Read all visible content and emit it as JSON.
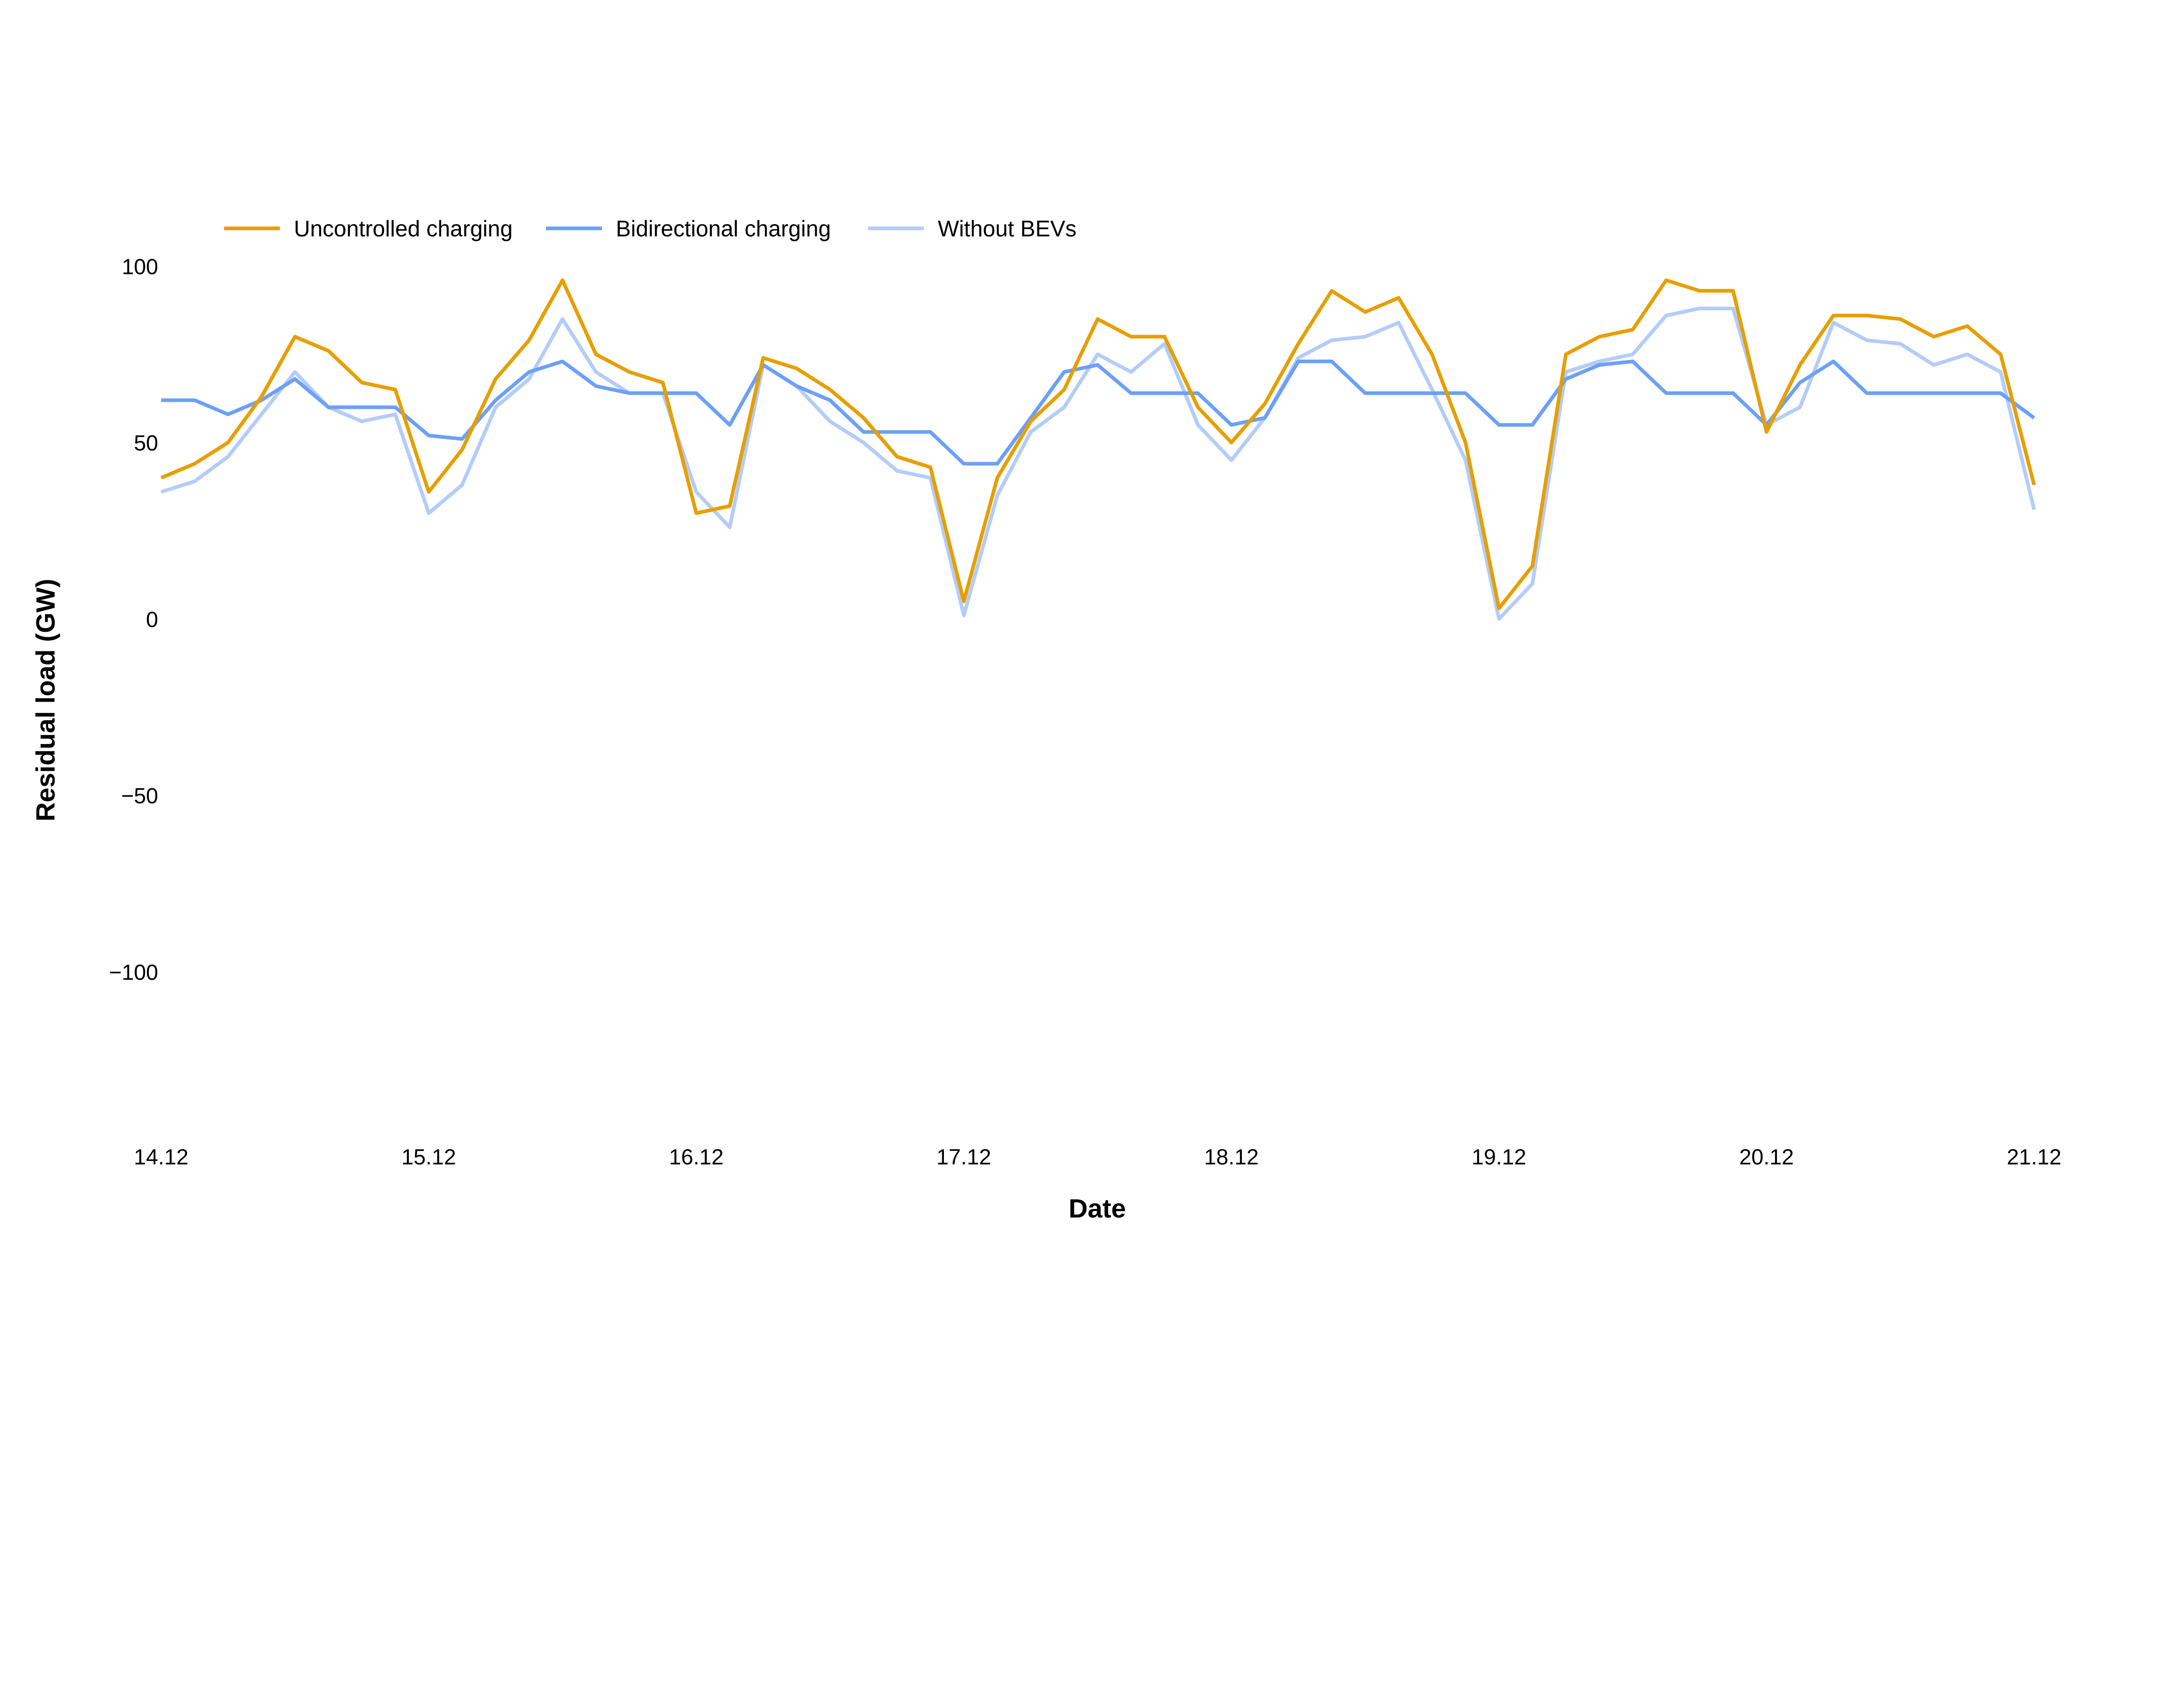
{
  "chart_data": {
    "type": "line",
    "title": "",
    "xlabel": "Date",
    "ylabel": "Residual load (GW)",
    "x_tick_labels": [
      "14.12",
      "15.12",
      "16.12",
      "17.12",
      "18.12",
      "19.12",
      "20.12",
      "21.12"
    ],
    "y_ticks": [
      100,
      50,
      0,
      -50,
      -100
    ],
    "y_tick_labels": [
      "100",
      "50",
      "0",
      "−50",
      "−100"
    ],
    "ylim": [
      -145,
      104
    ],
    "x_range": [
      "14.12 00:00",
      "21.12 00:00"
    ],
    "x_step_hours": 3,
    "grid": false,
    "legend_placement": "top-left",
    "series": [
      {
        "name": "Uncontrolled charging",
        "color": "#E69F00",
        "values": [
          40,
          44,
          50,
          63,
          80,
          76,
          67,
          65,
          36,
          48,
          68,
          79,
          96,
          75,
          70,
          67,
          30,
          32,
          74,
          71,
          65,
          57,
          46,
          43,
          5,
          40,
          56,
          65,
          85,
          80,
          80,
          60,
          50,
          61,
          78,
          93,
          87,
          91,
          75,
          50,
          3,
          15,
          75,
          80,
          82,
          96,
          93,
          93,
          53,
          72,
          86,
          86,
          85,
          80,
          83,
          75,
          38
        ]
      },
      {
        "name": "Bidirectional charging",
        "color": "#6CA0F8",
        "values": [
          62,
          62,
          58,
          62,
          68,
          60,
          60,
          60,
          52,
          51,
          62,
          70,
          73,
          66,
          64,
          64,
          64,
          55,
          72,
          66,
          62,
          53,
          53,
          53,
          44,
          44,
          57,
          70,
          72,
          64,
          64,
          64,
          55,
          57,
          73,
          73,
          64,
          64,
          64,
          64,
          55,
          55,
          68,
          72,
          73,
          64,
          64,
          64,
          55,
          67,
          73,
          64,
          64,
          64,
          64,
          64,
          57
        ]
      },
      {
        "name": "Without BEVs",
        "color": "#B3CCF9",
        "values": [
          36,
          39,
          46,
          58,
          70,
          60,
          56,
          58,
          30,
          38,
          60,
          68,
          85,
          70,
          64,
          64,
          36,
          26,
          72,
          66,
          56,
          50,
          42,
          40,
          1,
          35,
          53,
          60,
          75,
          70,
          78,
          55,
          45,
          57,
          74,
          79,
          80,
          84,
          65,
          45,
          0,
          10,
          70,
          73,
          75,
          86,
          88,
          88,
          55,
          60,
          84,
          79,
          78,
          72,
          75,
          70,
          31
        ]
      }
    ]
  }
}
